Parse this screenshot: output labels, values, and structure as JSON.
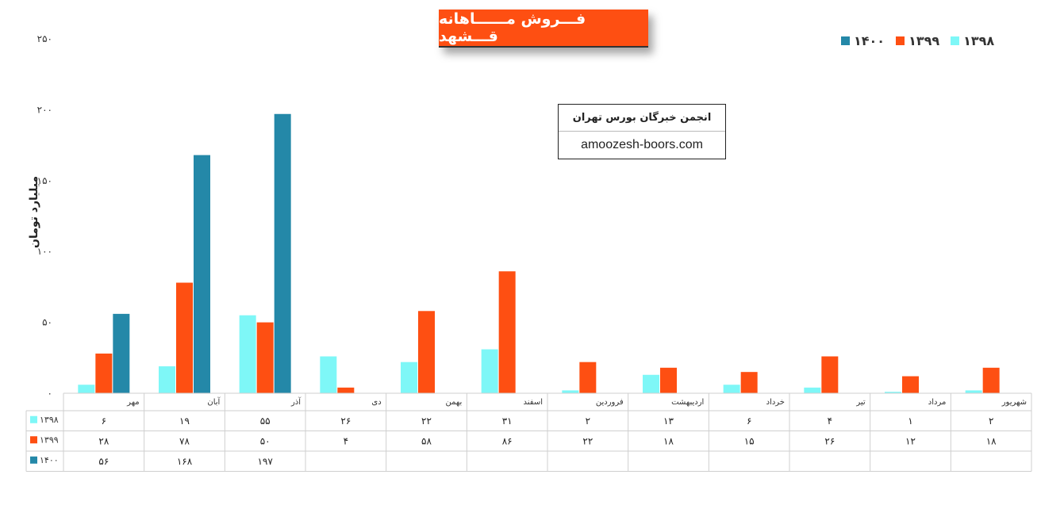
{
  "title": "فـــروش مــــــاهانه قـــشهد",
  "info_box": {
    "line1": "انجمن خبرگان بورس تهران",
    "line2": "amoozesh-boors.com"
  },
  "chart_data": {
    "type": "bar",
    "ylabel": "میلیارد تومان",
    "ylim": [
      0,
      250
    ],
    "yticks": [
      "۰",
      "۵۰",
      "۱۰۰",
      "۱۵۰",
      "۲۰۰",
      "۲۵۰"
    ],
    "ytick_values": [
      0,
      50,
      100,
      150,
      200,
      250
    ],
    "grid": false,
    "legend_placement": "top-right",
    "categories": [
      "مهر",
      "آبان",
      "آذر",
      "دی",
      "بهمن",
      "اسفند",
      "فروردین",
      "اردیبهشت",
      "خرداد",
      "تیر",
      "مرداد",
      "شهریور"
    ],
    "series": [
      {
        "name": "۱۳۹۸",
        "color": "#7ef7f7",
        "values": [
          6,
          19,
          55,
          26,
          22,
          31,
          2,
          13,
          6,
          4,
          1,
          2
        ],
        "labels": [
          "۶",
          "۱۹",
          "۵۵",
          "۲۶",
          "۲۲",
          "۳۱",
          "۲",
          "۱۳",
          "۶",
          "۴",
          "۱",
          "۲"
        ]
      },
      {
        "name": "۱۳۹۹",
        "color": "#fe4f12",
        "values": [
          28,
          78,
          50,
          4,
          58,
          86,
          22,
          18,
          15,
          26,
          12,
          18
        ],
        "labels": [
          "۲۸",
          "۷۸",
          "۵۰",
          "۴",
          "۵۸",
          "۸۶",
          "۲۲",
          "۱۸",
          "۱۵",
          "۲۶",
          "۱۲",
          "۱۸"
        ]
      },
      {
        "name": "۱۴۰۰",
        "color": "#2488a8",
        "values": [
          56,
          168,
          197,
          null,
          null,
          null,
          null,
          null,
          null,
          null,
          null,
          null
        ],
        "labels": [
          "۵۶",
          "۱۶۸",
          "۱۹۷",
          "",
          "",
          "",
          "",
          "",
          "",
          "",
          "",
          ""
        ]
      }
    ]
  }
}
